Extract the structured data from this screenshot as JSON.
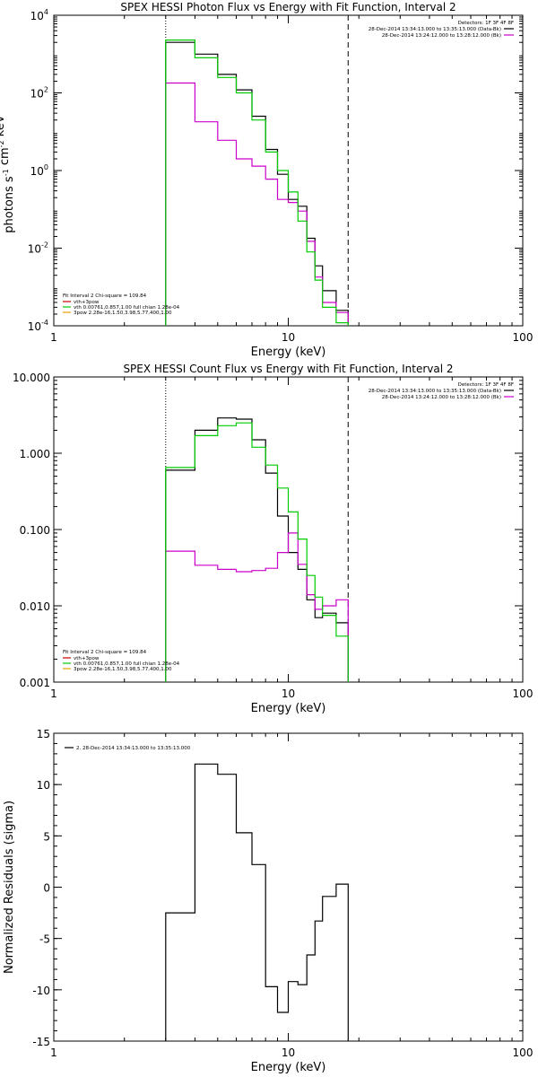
{
  "chart_data": [
    {
      "type": "line",
      "step": true,
      "title": "SPEX HESSI Photon Flux vs Energy with Fit Function, Interval 2",
      "xlabel": "Energy (keV)",
      "ylabel_main": "photons s",
      "ylabel_parts": [
        {
          "base": "photons s",
          "exp": "-1"
        },
        {
          "base": " cm",
          "exp": "-2"
        },
        {
          "base": " keV",
          "exp": "-1"
        }
      ],
      "xscale": "log",
      "yscale": "log",
      "xlim": [
        1,
        100
      ],
      "ylim": [
        0.0001,
        10000
      ],
      "x_ticks": [
        {
          "v": 1,
          "label": "1"
        },
        {
          "v": 10,
          "label": "10"
        },
        {
          "v": 100,
          "label": "100"
        }
      ],
      "y_ticks": [
        {
          "v": 0.0001,
          "base": "10",
          "exp": "-4"
        },
        {
          "v": 0.01,
          "base": "10",
          "exp": "-2"
        },
        {
          "v": 1,
          "base": "10",
          "exp": "0"
        },
        {
          "v": 100,
          "base": "10",
          "exp": "2"
        },
        {
          "v": 10000,
          "base": "10",
          "exp": "4"
        }
      ],
      "edges": [
        3,
        4,
        5,
        6,
        7,
        8,
        9,
        10,
        11,
        12,
        13,
        14,
        16,
        18
      ],
      "vlines": [
        {
          "x": 3,
          "style": "dotted"
        },
        {
          "x": 18,
          "style": "dashed"
        }
      ],
      "series": [
        {
          "name": "28-Dec-2014 13:34:13.000 to 13:35:13.000 (Data-Bk)",
          "color": "#000000",
          "values": [
            2000,
            1000,
            300,
            120,
            25,
            3.5,
            0.8,
            0.18,
            0.12,
            0.018,
            0.0035,
            0.0008,
            0.00025
          ]
        },
        {
          "name": "28-Dec-2014 13:24:12.000 to 13:28:12.000 (Bk)",
          "color": "#cc00cc",
          "values": [
            180,
            18,
            6,
            2,
            1.3,
            0.6,
            0.18,
            0.15,
            0.09,
            0.015,
            0.0018,
            0.0004,
            0.00022
          ]
        },
        {
          "name": "vth 0.00761,0.857,1.00 full chian 1.28e-04",
          "color": "#00cc00",
          "values": [
            2300,
            800,
            250,
            100,
            20,
            3,
            1,
            0.28,
            0.05,
            0.008,
            0.0015,
            0.0003,
            0.00012
          ]
        }
      ],
      "legend_title": "Detectors: 1F 3F 4F 8F",
      "fit_legend": {
        "header": "Fit Interval 2   Chi-square = 109.84",
        "items": [
          {
            "label": "vth+3pow",
            "color": "#cc0000"
          },
          {
            "label": "vth 0.00761,0.857,1.00  full chian 1.28e-04",
            "color": "#00cc00"
          },
          {
            "label": "3pow 2.28e-16,1.50,3.98,5.77,400,1.00",
            "color": "#e8a000"
          }
        ]
      }
    },
    {
      "type": "line",
      "step": true,
      "title": "SPEX HESSI Count Flux vs Energy with Fit Function, Interval 2",
      "xlabel": "Energy (keV)",
      "xscale": "log",
      "yscale": "log",
      "xlim": [
        1,
        100
      ],
      "ylim": [
        0.001,
        10
      ],
      "x_ticks": [
        {
          "v": 1,
          "label": "1"
        },
        {
          "v": 10,
          "label": "10"
        },
        {
          "v": 100,
          "label": "100"
        }
      ],
      "y_ticks": [
        {
          "v": 0.001,
          "label": "0.001"
        },
        {
          "v": 0.01,
          "label": "0.010"
        },
        {
          "v": 0.1,
          "label": "0.100"
        },
        {
          "v": 1,
          "label": "1.000"
        },
        {
          "v": 10,
          "label": "10.000"
        }
      ],
      "edges": [
        3,
        4,
        5,
        6,
        7,
        8,
        9,
        10,
        11,
        12,
        13,
        14,
        16,
        18
      ],
      "vlines": [
        {
          "x": 3,
          "style": "dotted"
        },
        {
          "x": 18,
          "style": "dashed"
        }
      ],
      "series": [
        {
          "name": "28-Dec-2014 13:34:13.000 to 13:35:13.000 (Data-Bk)",
          "color": "#000000",
          "values": [
            0.6,
            2.0,
            2.9,
            2.8,
            1.5,
            0.55,
            0.15,
            0.05,
            0.03,
            0.012,
            0.007,
            0.008,
            0.006
          ]
        },
        {
          "name": "28-Dec-2014 13:24:12.000 to 13:28:12.000 (Bk)",
          "color": "#cc00cc",
          "values": [
            0.052,
            0.034,
            0.03,
            0.028,
            0.029,
            0.031,
            0.05,
            0.09,
            0.035,
            0.014,
            0.009,
            0.01,
            0.012
          ]
        },
        {
          "name": "vth 0.00761,0.857,1.00 full chian 1.28e-04",
          "color": "#00cc00",
          "values": [
            0.65,
            1.7,
            2.3,
            2.5,
            1.2,
            0.7,
            0.35,
            0.17,
            0.075,
            0.025,
            0.013,
            0.0075,
            0.004
          ]
        }
      ],
      "legend_title": "Detectors: 1F 3F 4F 8F",
      "fit_legend": {
        "header": "Fit Interval 2   Chi-square = 109.84",
        "items": [
          {
            "label": "vth+3pow",
            "color": "#cc0000"
          },
          {
            "label": "vth 0.00761,0.857,1.00  full chian 1.28e-04",
            "color": "#00cc00"
          },
          {
            "label": "3pow 2.28e-16,1.50,3.98,5.77,400,1.00",
            "color": "#e8a000"
          }
        ]
      }
    },
    {
      "type": "line",
      "step": true,
      "title": "",
      "xlabel": "Energy (keV)",
      "ylabel": "Normalized Residuals (sigma)",
      "xscale": "log",
      "yscale": "linear",
      "xlim": [
        1,
        100
      ],
      "ylim": [
        -15,
        15
      ],
      "x_ticks": [
        {
          "v": 1,
          "label": "1"
        },
        {
          "v": 10,
          "label": "10"
        },
        {
          "v": 100,
          "label": "100"
        }
      ],
      "y_ticks": [
        {
          "v": -15,
          "label": "-15"
        },
        {
          "v": -10,
          "label": "-10"
        },
        {
          "v": -5,
          "label": "-5"
        },
        {
          "v": 0,
          "label": "0"
        },
        {
          "v": 5,
          "label": "5"
        },
        {
          "v": 10,
          "label": "10"
        },
        {
          "v": 15,
          "label": "15"
        }
      ],
      "edges": [
        3,
        4,
        5,
        6,
        7,
        8,
        9,
        10,
        11,
        12,
        13,
        14,
        16,
        18
      ],
      "series": [
        {
          "name": "2. 28-Dec-2014 13:34:13.000 to 13:35:13.000",
          "color": "#000000",
          "values": [
            -2.5,
            12,
            11,
            5.3,
            2.2,
            -9.7,
            -12.2,
            -9.2,
            -9.5,
            -6.6,
            -3.3,
            -0.9,
            0.3
          ]
        }
      ]
    }
  ]
}
